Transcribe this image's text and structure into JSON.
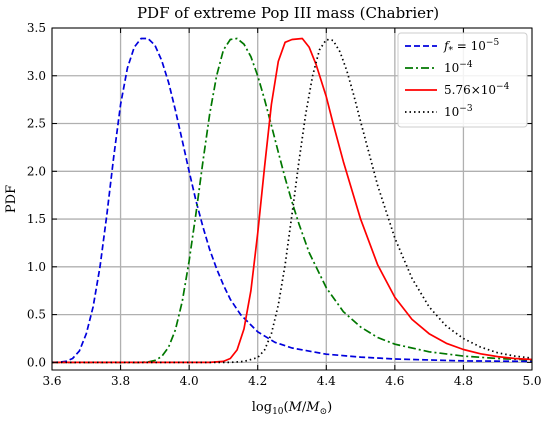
{
  "chart_data": {
    "type": "line",
    "title": "PDF of extreme Pop III mass (Chabrier)",
    "xlabel": "log₁₀(M/M⊙)",
    "xlabel_parts": {
      "prefix": "log",
      "sub": "10",
      "open": "(",
      "M": "M",
      "slash": "/",
      "Msun": "M",
      "sun_sub": "⊙",
      "close": ")"
    },
    "ylabel": "PDF",
    "xlim": [
      3.6,
      5.0
    ],
    "ylim": [
      -0.08,
      3.5
    ],
    "xticks": [
      "3.6",
      "3.8",
      "4.0",
      "4.2",
      "4.4",
      "4.6",
      "4.8",
      "5.0"
    ],
    "yticks": [
      "0.0",
      "0.5",
      "1.0",
      "1.5",
      "2.0",
      "2.5",
      "3.0",
      "3.5"
    ],
    "grid": true,
    "legend_position": "top-right",
    "series": [
      {
        "legend_parts": {
          "a": "f",
          "b": "*",
          "c": " = 10",
          "d": "−5"
        },
        "color": "#0000dd",
        "dash": "dashed",
        "points": [
          [
            3.6,
            0.0
          ],
          [
            3.62,
            0.002
          ],
          [
            3.64,
            0.01
          ],
          [
            3.66,
            0.04
          ],
          [
            3.68,
            0.12
          ],
          [
            3.7,
            0.3
          ],
          [
            3.72,
            0.58
          ],
          [
            3.74,
            1.0
          ],
          [
            3.76,
            1.55
          ],
          [
            3.78,
            2.15
          ],
          [
            3.8,
            2.7
          ],
          [
            3.82,
            3.08
          ],
          [
            3.84,
            3.3
          ],
          [
            3.86,
            3.39
          ],
          [
            3.88,
            3.39
          ],
          [
            3.9,
            3.32
          ],
          [
            3.92,
            3.16
          ],
          [
            3.94,
            2.93
          ],
          [
            3.96,
            2.64
          ],
          [
            3.98,
            2.32
          ],
          [
            4.0,
            2.0
          ],
          [
            4.02,
            1.69
          ],
          [
            4.04,
            1.42
          ],
          [
            4.06,
            1.18
          ],
          [
            4.08,
            0.98
          ],
          [
            4.1,
            0.81
          ],
          [
            4.12,
            0.66
          ],
          [
            4.15,
            0.5
          ],
          [
            4.2,
            0.32
          ],
          [
            4.25,
            0.21
          ],
          [
            4.3,
            0.15
          ],
          [
            4.4,
            0.085
          ],
          [
            4.5,
            0.055
          ],
          [
            4.6,
            0.035
          ],
          [
            4.8,
            0.015
          ],
          [
            5.0,
            0.01
          ]
        ]
      },
      {
        "legend_parts": {
          "a": "10",
          "b": "",
          "c": "",
          "d": "−4"
        },
        "color": "#007700",
        "dash": "dashdot",
        "points": [
          [
            3.6,
            0.0
          ],
          [
            3.86,
            0.0
          ],
          [
            3.88,
            0.005
          ],
          [
            3.9,
            0.02
          ],
          [
            3.92,
            0.06
          ],
          [
            3.94,
            0.16
          ],
          [
            3.96,
            0.34
          ],
          [
            3.98,
            0.64
          ],
          [
            4.0,
            1.06
          ],
          [
            4.02,
            1.56
          ],
          [
            4.04,
            2.1
          ],
          [
            4.06,
            2.6
          ],
          [
            4.08,
            3.0
          ],
          [
            4.1,
            3.27
          ],
          [
            4.12,
            3.38
          ],
          [
            4.14,
            3.39
          ],
          [
            4.16,
            3.33
          ],
          [
            4.18,
            3.2
          ],
          [
            4.2,
            3.0
          ],
          [
            4.22,
            2.75
          ],
          [
            4.24,
            2.48
          ],
          [
            4.26,
            2.2
          ],
          [
            4.28,
            1.93
          ],
          [
            4.3,
            1.68
          ],
          [
            4.32,
            1.45
          ],
          [
            4.35,
            1.15
          ],
          [
            4.4,
            0.78
          ],
          [
            4.45,
            0.53
          ],
          [
            4.5,
            0.37
          ],
          [
            4.55,
            0.26
          ],
          [
            4.6,
            0.19
          ],
          [
            4.7,
            0.11
          ],
          [
            4.8,
            0.065
          ],
          [
            4.9,
            0.04
          ],
          [
            5.0,
            0.025
          ]
        ]
      },
      {
        "legend_parts": {
          "a": "5.76×10",
          "b": "",
          "c": "",
          "d": "−4"
        },
        "color": "#ff0000",
        "dash": "solid",
        "points": [
          [
            3.6,
            0.0
          ],
          [
            4.06,
            0.0
          ],
          [
            4.1,
            0.01
          ],
          [
            4.12,
            0.04
          ],
          [
            4.14,
            0.13
          ],
          [
            4.16,
            0.35
          ],
          [
            4.18,
            0.75
          ],
          [
            4.2,
            1.35
          ],
          [
            4.22,
            2.05
          ],
          [
            4.24,
            2.7
          ],
          [
            4.26,
            3.15
          ],
          [
            4.28,
            3.35
          ],
          [
            4.3,
            3.38
          ],
          [
            4.33,
            3.39
          ],
          [
            4.35,
            3.3
          ],
          [
            4.37,
            3.12
          ],
          [
            4.4,
            2.78
          ],
          [
            4.42,
            2.5
          ],
          [
            4.45,
            2.1
          ],
          [
            4.5,
            1.5
          ],
          [
            4.55,
            1.02
          ],
          [
            4.6,
            0.68
          ],
          [
            4.65,
            0.45
          ],
          [
            4.7,
            0.3
          ],
          [
            4.75,
            0.2
          ],
          [
            4.8,
            0.135
          ],
          [
            4.85,
            0.09
          ],
          [
            4.9,
            0.06
          ],
          [
            4.95,
            0.04
          ],
          [
            5.0,
            0.03
          ]
        ]
      },
      {
        "legend_parts": {
          "a": "10",
          "b": "",
          "c": "",
          "d": "−3"
        },
        "color": "#000000",
        "dash": "dotted",
        "points": [
          [
            3.6,
            0.0
          ],
          [
            4.12,
            0.0
          ],
          [
            4.16,
            0.01
          ],
          [
            4.2,
            0.05
          ],
          [
            4.22,
            0.13
          ],
          [
            4.24,
            0.3
          ],
          [
            4.26,
            0.6
          ],
          [
            4.28,
            1.02
          ],
          [
            4.3,
            1.55
          ],
          [
            4.32,
            2.1
          ],
          [
            4.34,
            2.6
          ],
          [
            4.36,
            3.0
          ],
          [
            4.38,
            3.27
          ],
          [
            4.4,
            3.38
          ],
          [
            4.42,
            3.37
          ],
          [
            4.44,
            3.25
          ],
          [
            4.46,
            3.05
          ],
          [
            4.48,
            2.8
          ],
          [
            4.5,
            2.52
          ],
          [
            4.55,
            1.85
          ],
          [
            4.6,
            1.3
          ],
          [
            4.65,
            0.88
          ],
          [
            4.7,
            0.58
          ],
          [
            4.75,
            0.38
          ],
          [
            4.8,
            0.25
          ],
          [
            4.85,
            0.16
          ],
          [
            4.9,
            0.1
          ],
          [
            4.95,
            0.065
          ],
          [
            5.0,
            0.045
          ]
        ]
      }
    ]
  }
}
